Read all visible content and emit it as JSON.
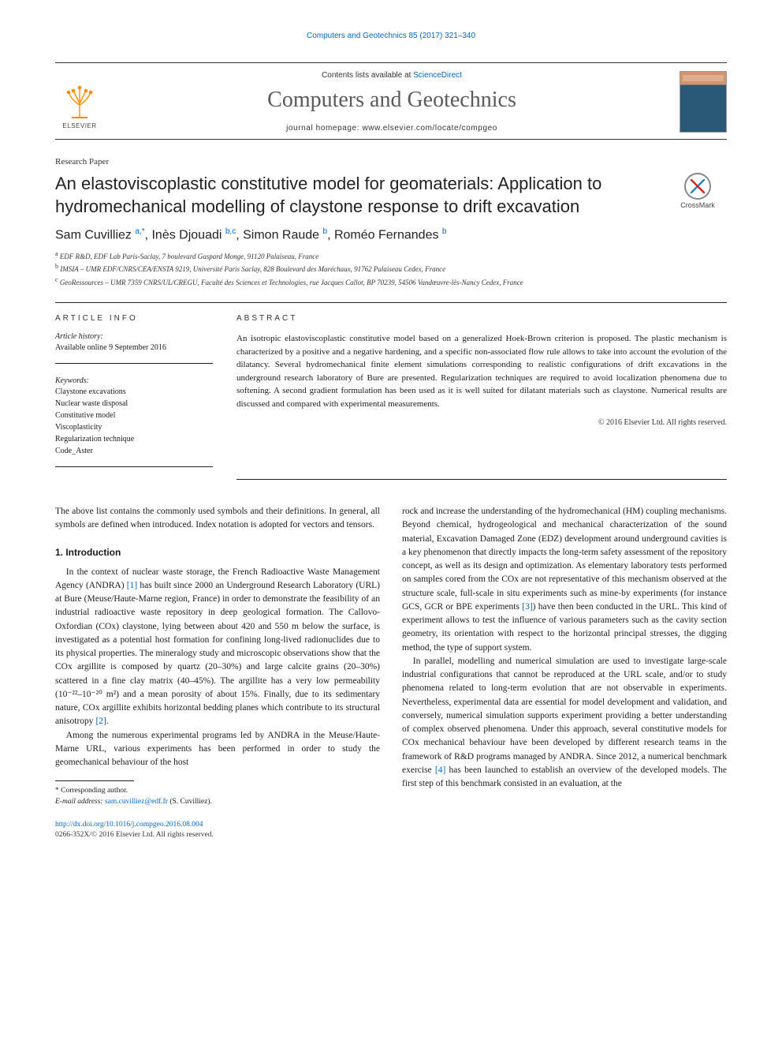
{
  "running_header": {
    "citation_prefix": "Computers and Geotechnics 85 (2017) 321–340",
    "citation_link_text": "Computers and Geotechnics 85 (2017) 321–340"
  },
  "masthead": {
    "elsevier_label": "ELSEVIER",
    "contents_prefix": "Contents lists available at ",
    "contents_link": "ScienceDirect",
    "journal_name": "Computers and Geotechnics",
    "homepage_prefix": "journal homepage: ",
    "homepage_url": "www.elsevier.com/locate/compgeo"
  },
  "paper_type": "Research Paper",
  "title": "An elastoviscoplastic constitutive model for geomaterials: Application to hydromechanical modelling of claystone response to drift excavation",
  "crossmark_label": "CrossMark",
  "authors_html": "Sam Cuvilliez <sup>a,*</sup>, Inès Djouadi <sup>b,c</sup>, Simon Raude <sup>b</sup>, Roméo Fernandes <sup>b</sup>",
  "affiliations": [
    "a EDF R&D, EDF Lab Paris-Saclay, 7 boulevard Gaspard Monge, 91120 Palaiseau, France",
    "b IMSIA – UMR EDF/CNRS/CEA/ENSTA 9219, Université Paris Saclay, 828 Boulevard des Maréchaux, 91762 Palaiseau Cedex, France",
    "c GeoRessources – UMR 7359 CNRS/UL/CREGU, Faculté des Sciences et Technologies, rue Jacques Callot, BP 70239, 54506 Vandœuvre-lès-Nancy Cedex, France"
  ],
  "article_info": {
    "heading": "ARTICLE INFO",
    "history_label": "Article history:",
    "history_text": "Available online 9 September 2016",
    "keywords_label": "Keywords:",
    "keywords": [
      "Claystone excavations",
      "Nuclear waste disposal",
      "Constitutive model",
      "Viscoplasticity",
      "Regularization technique",
      "Code_Aster"
    ]
  },
  "abstract": {
    "heading": "ABSTRACT",
    "text": "An isotropic elastoviscoplastic constitutive model based on a generalized Hoek-Brown criterion is proposed. The plastic mechanism is characterized by a positive and a negative hardening, and a specific non-associated flow rule allows to take into account the evolution of the dilatancy. Several hydromechanical finite element simulations corresponding to realistic configurations of drift excavations in the underground research laboratory of Bure are presented. Regularization techniques are required to avoid localization phenomena due to softening. A second gradient formulation has been used as it is well suited for dilatant materials such as claystone. Numerical results are discussed and compared with experimental measurements.",
    "copyright": "© 2016 Elsevier Ltd. All rights reserved."
  },
  "body": {
    "preamble": "The above list contains the commonly used symbols and their definitions. In general, all symbols are defined when introduced. Index notation is adopted for vectors and tensors.",
    "section_heading": "1. Introduction",
    "p1": "In the context of nuclear waste storage, the French Radioactive Waste Management Agency (ANDRA) [1] has built since 2000 an Underground Research Laboratory (URL) at Bure (Meuse/Haute-Marne region, France) in order to demonstrate the feasibility of an industrial radioactive waste repository in deep geological formation. The Callovo-Oxfordian (COx) claystone, lying between about 420 and 550 m below the surface, is investigated as a potential host formation for confining long-lived radionuclides due to its physical properties. The mineralogy study and microscopic observations show that the COx argillite is composed by quartz (20–30%) and large calcite grains (20–30%) scattered in a fine clay matrix (40–45%). The argillite has a very low permeability (10⁻²²–10⁻²⁰ m²) and a mean porosity of about 15%. Finally, due to its sedimentary nature, COx argillite exhibits horizontal bedding planes which contribute to its structural anisotropy [2].",
    "p2": "Among the numerous experimental programs led by ANDRA in the Meuse/Haute-Marne URL, various experiments has been performed in order to study the geomechanical behaviour of the host",
    "p3": "rock and increase the understanding of the hydromechanical (HM) coupling mechanisms. Beyond chemical, hydrogeological and mechanical characterization of the sound material, Excavation Damaged Zone (EDZ) development around underground cavities is a key phenomenon that directly impacts the long-term safety assessment of the repository concept, as well as its design and optimization. As elementary laboratory tests performed on samples cored from the COx are not representative of this mechanism observed at the structure scale, full-scale in situ experiments such as mine-by experiments (for instance GCS, GCR or BPE experiments [3]) have then been conducted in the URL. This kind of experiment allows to test the influence of various parameters such as the cavity section geometry, its orientation with respect to the horizontal principal stresses, the digging method, the type of support system.",
    "p4": "In parallel, modelling and numerical simulation are used to investigate large-scale industrial configurations that cannot be reproduced at the URL scale, and/or to study phenomena related to long-term evolution that are not observable in experiments. Nevertheless, experimental data are essential for model development and validation, and conversely, numerical simulation supports experiment providing a better understanding of complex observed phenomena. Under this approach, several constitutive models for COx mechanical behaviour have been developed by different research teams in the framework of R&D programs managed by ANDRA. Since 2012, a numerical benchmark exercise [4] has been launched to establish an overview of the developed models. The first step of this benchmark consisted in an evaluation, at the"
  },
  "footnotes": {
    "corresponding": "* Corresponding author.",
    "email_label": "E-mail address: ",
    "email": "sam.cuvilliez@edf.fr",
    "email_suffix": " (S. Cuvilliez)."
  },
  "doi": {
    "url": "http://dx.doi.org/10.1016/j.compgeo.2016.08.004",
    "issn_line": "0266-352X/© 2016 Elsevier Ltd. All rights reserved."
  },
  "colors": {
    "link": "#0066cc",
    "text": "#1a1a1a",
    "journal_gray": "#5a5a5a",
    "rule": "#222222",
    "background": "#ffffff"
  }
}
